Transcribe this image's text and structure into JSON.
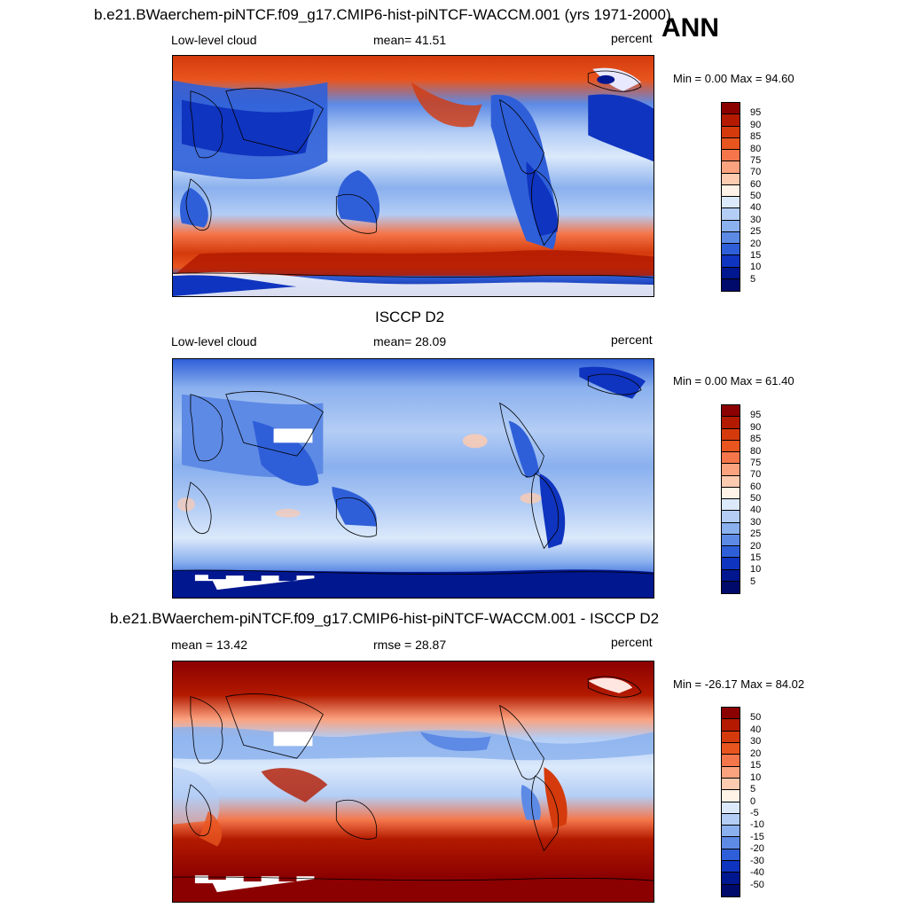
{
  "figure": {
    "title": "b.e21.BWaerchem-piNTCF.f09_g17.CMIP6-hist-piNTCF-WACCM.001 (yrs 1971-2000)",
    "season": "ANN"
  },
  "panels": [
    {
      "title": "",
      "left_label": "Low-level cloud",
      "center_label": "mean=  41.51",
      "right_label": "percent",
      "minmax": "Min =   0.00 Max =  94.60",
      "colorbar_labels": [
        "95",
        "90",
        "85",
        "80",
        "75",
        "70",
        "60",
        "50",
        "40",
        "30",
        "25",
        "20",
        "15",
        "10",
        "5"
      ]
    },
    {
      "title": "ISCCP D2",
      "left_label": "Low-level cloud",
      "center_label": "mean=  28.09",
      "right_label": "percent",
      "minmax": "Min =   0.00 Max =  61.40",
      "colorbar_labels": [
        "95",
        "90",
        "85",
        "80",
        "75",
        "70",
        "60",
        "50",
        "40",
        "30",
        "25",
        "20",
        "15",
        "10",
        "5"
      ]
    },
    {
      "title": "b.e21.BWaerchem-piNTCF.f09_g17.CMIP6-hist-piNTCF-WACCM.001 - ISCCP D2",
      "left_label": "mean =  13.42",
      "center_label": "rmse =  28.87",
      "right_label": "percent",
      "minmax": "Min = -26.17 Max =  84.02",
      "colorbar_labels": [
        "50",
        "40",
        "30",
        "20",
        "15",
        "10",
        "5",
        "0",
        "-5",
        "-10",
        "-15",
        "-20",
        "-30",
        "-40",
        "-50"
      ]
    }
  ],
  "colors": {
    "scale": [
      "#8b0000",
      "#b31a00",
      "#d43a0c",
      "#e8551f",
      "#f5764a",
      "#fba27f",
      "#fdcbb0",
      "#fff2e6",
      "#dbe9fb",
      "#b3cdf5",
      "#8ab0ee",
      "#5d8ae5",
      "#2f5fd8",
      "#0f34bf",
      "#00178f",
      "#000a6b"
    ]
  }
}
